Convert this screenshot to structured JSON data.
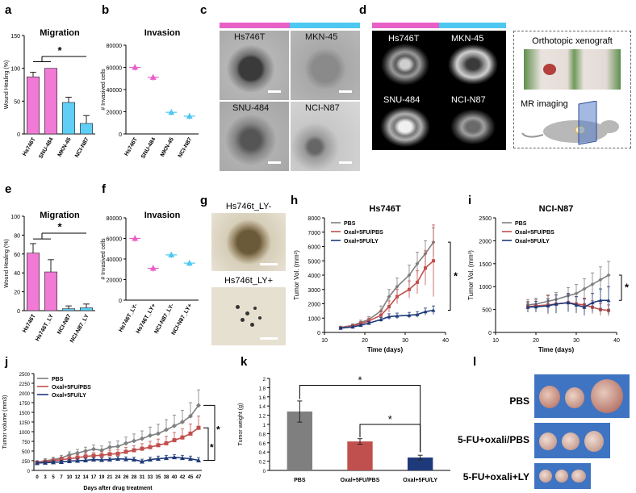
{
  "colors": {
    "magenta": "#e85fc7",
    "cyan": "#4dc8f0",
    "pink_bar": "#f07ad5",
    "cyan_bar": "#5fcff5",
    "gray": "#7f7f7f",
    "red": "#c0504d",
    "navy": "#1f3a7a"
  },
  "panels": {
    "a": "a",
    "b": "b",
    "c": "c",
    "d": "d",
    "e": "e",
    "f": "f",
    "g": "g",
    "h": "h",
    "i": "i",
    "j": "j",
    "k": "k",
    "l": "l"
  },
  "photos": {
    "c": [
      "Hs746T",
      "MKN-45",
      "SNU-484",
      "NCI-N87"
    ],
    "d": [
      "Hs746T",
      "MKN-45",
      "SNU-484",
      "NCI-N87"
    ],
    "g": [
      "Hs746t_LY-",
      "Hs746t_LY+"
    ],
    "xenograft_title": "Orthotopic xenograft",
    "mr_label": "MR imaging",
    "l_rows": [
      "PBS",
      "5-FU+oxali/PBS",
      "5-FU+oxali+LY"
    ]
  },
  "chart_data": [
    {
      "id": "a",
      "type": "bar",
      "title": "Migration",
      "ylabel": "Wound Healing (%)",
      "categories": [
        "Hs746T",
        "SNU-484",
        "MKN-45",
        "NCI-N87"
      ],
      "values": [
        87,
        100,
        48,
        16
      ],
      "errors": [
        7,
        0,
        8,
        12
      ],
      "ylim": [
        0,
        150
      ],
      "yticks": [
        "0",
        "50",
        "100",
        "150"
      ],
      "annotation": "*"
    },
    {
      "id": "b",
      "type": "scatter",
      "title": "Invasion",
      "ylabel": "# Invasived cells",
      "categories": [
        "Hs746T",
        "SNU-484",
        "MKN-45",
        "NCI-N87"
      ],
      "values": [
        60000,
        51000,
        19500,
        16000
      ],
      "ylim": [
        0,
        80000
      ],
      "yticks": [
        "0",
        "20000",
        "40000",
        "60000",
        "80000"
      ]
    },
    {
      "id": "e",
      "type": "bar",
      "title": "Migration",
      "ylabel": "Wound Healing (%)",
      "categories": [
        "Hs746T",
        "Hs746T_LY",
        "NCI-N87",
        "NCI-N87_LY"
      ],
      "values": [
        61,
        41,
        2,
        3
      ],
      "errors": [
        10,
        13,
        3,
        4
      ],
      "ylim": [
        0,
        100
      ],
      "yticks": [
        "0",
        "20",
        "40",
        "60",
        "80",
        "100"
      ],
      "annotation": "*"
    },
    {
      "id": "f",
      "type": "scatter",
      "title": "Invasion",
      "ylabel": "# Invasived cells",
      "categories": [
        "Hs746T_LY-",
        "Hs746T_LY+",
        "NCI-N87_LY-",
        "NCI-N87_LY+"
      ],
      "values": [
        60000,
        31000,
        44000,
        36000
      ],
      "ylim": [
        0,
        80000
      ],
      "yticks": [
        "0",
        "20000",
        "40000",
        "60000",
        "80000"
      ]
    },
    {
      "id": "h",
      "type": "line",
      "title": "Hs746T",
      "xlabel": "Time (days)",
      "ylabel": "Tumor Vol. (mm³)",
      "xlim": [
        10,
        40
      ],
      "ylim": [
        0,
        8000
      ],
      "xticks": [
        "10",
        "20",
        "30",
        "40"
      ],
      "yticks": [
        "0",
        "1000",
        "2000",
        "3000",
        "4000",
        "5000",
        "6000",
        "7000",
        "8000"
      ],
      "x": [
        14,
        17,
        19,
        21,
        24,
        26,
        28,
        31,
        33,
        35,
        37
      ],
      "series": [
        {
          "name": "PBS",
          "values": [
            350,
            500,
            700,
            900,
            1500,
            2500,
            3200,
            4000,
            4800,
            5500,
            6300
          ],
          "errors": [
            80,
            100,
            150,
            200,
            350,
            500,
            600,
            700,
            800,
            900,
            1000
          ]
        },
        {
          "name": "Oxal+5FU/PBS",
          "values": [
            300,
            450,
            600,
            800,
            1200,
            1800,
            2500,
            3000,
            3500,
            4500,
            5000
          ],
          "errors": [
            80,
            100,
            150,
            200,
            300,
            400,
            500,
            600,
            800,
            1200,
            2500
          ]
        },
        {
          "name": "Oxal+5FU/LY",
          "values": [
            300,
            380,
            500,
            650,
            900,
            1100,
            1150,
            1200,
            1250,
            1450,
            1550
          ],
          "errors": [
            60,
            80,
            100,
            120,
            150,
            200,
            200,
            200,
            200,
            250,
            300
          ]
        }
      ],
      "annotation": "*"
    },
    {
      "id": "i",
      "type": "line",
      "title": "NCI-N87",
      "xlabel": "Time (days)",
      "ylabel": "Tumor Vol. (mm³)",
      "xlim": [
        10,
        40
      ],
      "ylim": [
        0,
        2500
      ],
      "xticks": [
        "10",
        "20",
        "30",
        "40"
      ],
      "yticks": [
        "0",
        "500",
        "1000",
        "1500",
        "2000",
        "2500"
      ],
      "x": [
        18,
        20,
        23,
        25,
        28,
        30,
        32,
        34,
        36,
        38
      ],
      "series": [
        {
          "name": "PBS",
          "values": [
            600,
            620,
            680,
            720,
            800,
            850,
            950,
            1050,
            1150,
            1250
          ],
          "errors": [
            120,
            130,
            140,
            150,
            180,
            200,
            220,
            250,
            280,
            300
          ]
        },
        {
          "name": "Oxal+5FU/PBS",
          "values": [
            560,
            580,
            600,
            620,
            650,
            620,
            600,
            550,
            500,
            480
          ],
          "errors": [
            120,
            130,
            200,
            200,
            180,
            160,
            150,
            140,
            130,
            120
          ]
        },
        {
          "name": "Oxal+5FU/LY",
          "values": [
            550,
            560,
            580,
            620,
            650,
            600,
            550,
            650,
            700,
            700
          ],
          "errors": [
            100,
            120,
            150,
            200,
            200,
            180,
            180,
            200,
            250,
            300
          ]
        }
      ],
      "annotation": "*"
    },
    {
      "id": "j",
      "type": "line",
      "xlabel": "Days after drug treatment",
      "ylabel": "Tumor volume (mm3)",
      "ylim": [
        0,
        2500
      ],
      "yticks": [
        "0",
        "250",
        "500",
        "750",
        "1000",
        "1250",
        "1500",
        "1750",
        "2000",
        "2250",
        "2500"
      ],
      "categories": [
        "0",
        "3",
        "5",
        "7",
        "10",
        "12",
        "14",
        "17",
        "19",
        "21",
        "24",
        "26",
        "28",
        "31",
        "33",
        "35",
        "38",
        "40",
        "42",
        "45",
        "47"
      ],
      "series": [
        {
          "name": "PBS",
          "values": [
            210,
            250,
            280,
            320,
            400,
            450,
            500,
            550,
            520,
            600,
            620,
            700,
            760,
            820,
            900,
            950,
            1050,
            1150,
            1250,
            1400,
            1680
          ],
          "errors": [
            40,
            50,
            60,
            70,
            80,
            90,
            100,
            110,
            110,
            130,
            140,
            160,
            180,
            200,
            220,
            240,
            260,
            280,
            300,
            350,
            400
          ]
        },
        {
          "name": "Oxal+5FU/PBS",
          "values": [
            200,
            220,
            250,
            280,
            300,
            330,
            360,
            380,
            390,
            420,
            430,
            480,
            520,
            560,
            600,
            650,
            700,
            780,
            850,
            950,
            1100
          ],
          "errors": [
            40,
            45,
            50,
            60,
            70,
            70,
            80,
            80,
            90,
            100,
            100,
            110,
            120,
            130,
            150,
            160,
            180,
            200,
            220,
            250,
            300
          ]
        },
        {
          "name": "Oxal+5FU/LY",
          "values": [
            190,
            200,
            210,
            220,
            240,
            250,
            260,
            280,
            270,
            280,
            300,
            290,
            280,
            230,
            280,
            300,
            320,
            340,
            320,
            300,
            260
          ],
          "errors": [
            30,
            35,
            40,
            40,
            45,
            45,
            50,
            50,
            50,
            50,
            60,
            60,
            60,
            60,
            60,
            70,
            70,
            70,
            70,
            70,
            70
          ]
        }
      ],
      "annotation": "*"
    },
    {
      "id": "k",
      "type": "bar",
      "ylabel": "Tumor weight (g)",
      "categories": [
        "PBS",
        "Oxal+5FU/PBS",
        "Oxal+5FU/LY"
      ],
      "values": [
        1.28,
        0.63,
        0.28
      ],
      "errors": [
        0.23,
        0.06,
        0.05
      ],
      "ylim": [
        0,
        2
      ],
      "yticks": [
        "0",
        "0.2",
        "0.4",
        "0.6",
        "0.8",
        "1",
        "1.2",
        "1.4",
        "1.6",
        "1.8",
        "2"
      ],
      "annotation": "*"
    }
  ]
}
